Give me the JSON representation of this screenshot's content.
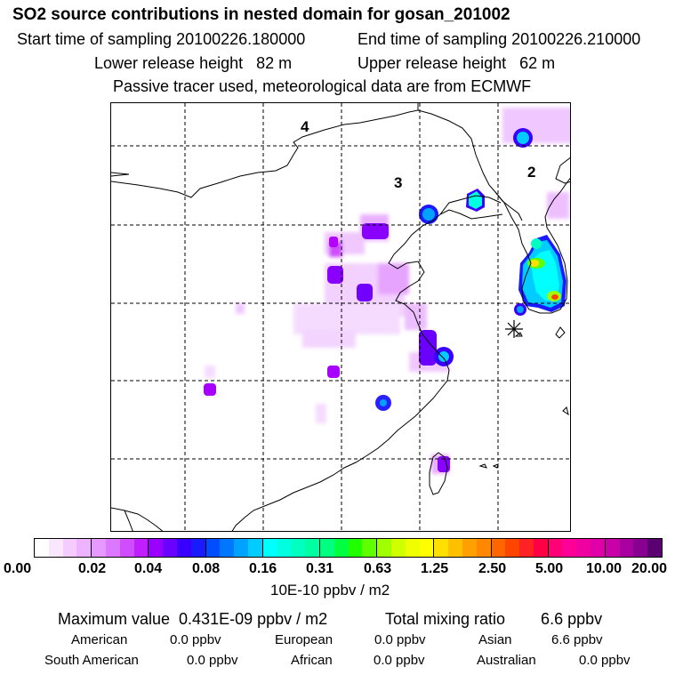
{
  "header": {
    "title": "SO2 source contributions in nested domain for gosan_201002",
    "start_time": "Start time of sampling 20100226.180000",
    "end_time": "End time of sampling 20100226.210000",
    "lower_release": "Lower release height   82 m",
    "upper_release": "Upper release height   62 m",
    "tracer_note": "Passive tracer used, meteorological data are from ECMWF"
  },
  "map": {
    "region_labels": [
      "4",
      "3",
      "2"
    ],
    "receptor_marker": "receptor-asterisk"
  },
  "colorbar": {
    "ticks": [
      "0.00",
      "0.02",
      "0.04",
      "0.08",
      "0.16",
      "0.31",
      "0.63",
      "1.25",
      "2.50",
      "5.00",
      "10.00",
      "20.00"
    ],
    "segments": [
      [
        "#ffffff",
        "#fbe6ff",
        "#f5ccff",
        "#eeb3ff"
      ],
      [
        "#e699ff",
        "#dc77ff",
        "#cf4dff",
        "#bf1fff"
      ],
      [
        "#9a00ff",
        "#6a00ff",
        "#3a00ff",
        "#1a1aff"
      ],
      [
        "#004cff",
        "#0077ff",
        "#00a2ff",
        "#00ccff"
      ],
      [
        "#00ffff",
        "#00ffe0",
        "#00ffc0",
        "#00ffa0"
      ],
      [
        "#00ff80",
        "#00ff40",
        "#20ff00",
        "#60ff00"
      ],
      [
        "#a0ff00",
        "#d0ff00",
        "#f0ff00",
        "#ffff00"
      ],
      [
        "#ffe000",
        "#ffc000",
        "#ffa000",
        "#ff8800"
      ],
      [
        "#ff6600",
        "#ff4400",
        "#ff2222",
        "#ff0044"
      ],
      [
        "#ff0077",
        "#ff0099",
        "#f000a0",
        "#e000a8"
      ],
      [
        "#c800a8",
        "#a800a0",
        "#880090",
        "#5a0070"
      ]
    ],
    "unit": "10E-10 ppbv / m2"
  },
  "stats": {
    "maximum": "Maximum value  0.431E-09 ppbv / m2",
    "total": "Total mixing ratio        6.6 ppbv"
  },
  "contributions": [
    {
      "name": "American",
      "value": "0.0 ppbv"
    },
    {
      "name": "European",
      "value": "0.0 ppbv"
    },
    {
      "name": "Asian",
      "value": "6.6 ppbv"
    },
    {
      "name": "South American",
      "value": "0.0 ppbv"
    },
    {
      "name": "African",
      "value": "0.0 ppbv"
    },
    {
      "name": "Australian",
      "value": "0.0 ppbv"
    }
  ]
}
